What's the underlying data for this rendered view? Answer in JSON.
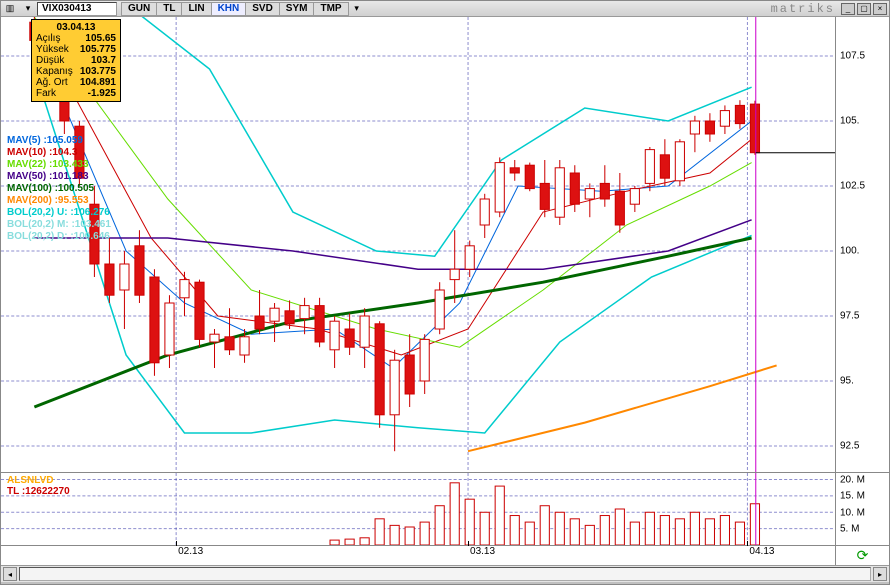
{
  "window": {
    "brand": "matriks"
  },
  "toolbar": {
    "symbol": "VIX030413",
    "tabs": [
      "GUN",
      "TL",
      "LIN",
      "KHN",
      "SVD",
      "SYM",
      "TMP"
    ],
    "active_tab": "KHN"
  },
  "ohlc_box": {
    "date": "03.04.13",
    "rows": [
      {
        "k": "Açılış",
        "v": "105.65"
      },
      {
        "k": "Yüksek",
        "v": "105.775"
      },
      {
        "k": "Düşük",
        "v": "103.7"
      },
      {
        "k": "Kapanış",
        "v": "103.775"
      },
      {
        "k": "Ağ. Ort",
        "v": "104.891"
      },
      {
        "k": "Fark",
        "v": "-1.925"
      }
    ]
  },
  "indicator_labels": [
    {
      "text": "MAV(5)    :105.059",
      "color": "#0066dd"
    },
    {
      "text": "MAV(10)   :104.3",
      "color": "#cc0000"
    },
    {
      "text": "MAV(22)   :103.433",
      "color": "#66dd00"
    },
    {
      "text": "MAV(50)   :101.183",
      "color": "#440088"
    },
    {
      "text": "MAV(100)  :100.505",
      "color": "#006600"
    },
    {
      "text": "MAV(200)  :95.553",
      "color": "#ff8800"
    },
    {
      "text": "BOL(20,2) U: :106.276",
      "color": "#00cccc"
    },
    {
      "text": "BOL(20,2) M: :103.461",
      "color": "#88dddd"
    },
    {
      "text": "BOL(20,2) D: :100.646",
      "color": "#88dddd"
    }
  ],
  "volume_labels": [
    {
      "text": "ALSNLVD",
      "color": "#ffaa00"
    },
    {
      "text": "TL        :12622270",
      "color": "#cc0000"
    }
  ],
  "price_axis": {
    "min": 91.5,
    "max": 109,
    "ticks": [
      92.5,
      95,
      97.5,
      100,
      102.5,
      105,
      107.5
    ]
  },
  "volume_axis": {
    "min": 0,
    "max": 22,
    "ticks": [
      5,
      10,
      15,
      20
    ],
    "suffix": ". M"
  },
  "time_axis": {
    "labels": [
      {
        "pos": 0.21,
        "text": "02.13"
      },
      {
        "pos": 0.56,
        "text": "03.13"
      },
      {
        "pos": 0.895,
        "text": "04.13"
      }
    ]
  },
  "cursor_x": 0.905,
  "candles": [
    {
      "x": 0.04,
      "o": 108.8,
      "h": 109.2,
      "l": 107.8,
      "c": 108.1
    },
    {
      "x": 0.058,
      "o": 108.0,
      "h": 108.2,
      "l": 107.0,
      "c": 107.1
    },
    {
      "x": 0.076,
      "o": 106.0,
      "h": 107.0,
      "l": 104.5,
      "c": 105.0
    },
    {
      "x": 0.094,
      "o": 104.8,
      "h": 105.0,
      "l": 102.5,
      "c": 102.8
    },
    {
      "x": 0.112,
      "o": 101.8,
      "h": 102.5,
      "l": 99.0,
      "c": 99.5
    },
    {
      "x": 0.13,
      "o": 99.5,
      "h": 100.5,
      "l": 98.0,
      "c": 98.3
    },
    {
      "x": 0.148,
      "o": 98.5,
      "h": 100.0,
      "l": 97.0,
      "c": 99.5
    },
    {
      "x": 0.166,
      "o": 100.2,
      "h": 100.8,
      "l": 98.0,
      "c": 98.3
    },
    {
      "x": 0.184,
      "o": 99.0,
      "h": 99.3,
      "l": 95.2,
      "c": 95.7
    },
    {
      "x": 0.202,
      "o": 96.0,
      "h": 98.3,
      "l": 95.5,
      "c": 98.0
    },
    {
      "x": 0.22,
      "o": 98.2,
      "h": 99.2,
      "l": 97.5,
      "c": 98.9
    },
    {
      "x": 0.238,
      "o": 98.8,
      "h": 98.9,
      "l": 96.3,
      "c": 96.6
    },
    {
      "x": 0.256,
      "o": 96.5,
      "h": 97.0,
      "l": 95.5,
      "c": 96.8
    },
    {
      "x": 0.274,
      "o": 96.7,
      "h": 97.8,
      "l": 96.0,
      "c": 96.2
    },
    {
      "x": 0.292,
      "o": 96.0,
      "h": 97.0,
      "l": 95.7,
      "c": 96.7
    },
    {
      "x": 0.31,
      "o": 97.5,
      "h": 98.5,
      "l": 96.8,
      "c": 97.0
    },
    {
      "x": 0.328,
      "o": 97.3,
      "h": 98.0,
      "l": 96.5,
      "c": 97.8
    },
    {
      "x": 0.346,
      "o": 97.7,
      "h": 98.1,
      "l": 97.0,
      "c": 97.2
    },
    {
      "x": 0.364,
      "o": 97.4,
      "h": 98.2,
      "l": 96.8,
      "c": 97.9
    },
    {
      "x": 0.382,
      "o": 97.9,
      "h": 98.2,
      "l": 96.3,
      "c": 96.5
    },
    {
      "x": 0.4,
      "o": 96.2,
      "h": 97.5,
      "l": 95.5,
      "c": 97.3
    },
    {
      "x": 0.418,
      "o": 97.0,
      "h": 97.6,
      "l": 96.0,
      "c": 96.3
    },
    {
      "x": 0.436,
      "o": 96.3,
      "h": 97.8,
      "l": 95.5,
      "c": 97.5
    },
    {
      "x": 0.454,
      "o": 97.2,
      "h": 97.3,
      "l": 93.2,
      "c": 93.7
    },
    {
      "x": 0.472,
      "o": 93.7,
      "h": 96.2,
      "l": 92.3,
      "c": 95.8
    },
    {
      "x": 0.49,
      "o": 96.0,
      "h": 96.8,
      "l": 94.0,
      "c": 94.5
    },
    {
      "x": 0.508,
      "o": 95.0,
      "h": 96.8,
      "l": 94.5,
      "c": 96.6
    },
    {
      "x": 0.526,
      "o": 97.0,
      "h": 98.8,
      "l": 96.8,
      "c": 98.5
    },
    {
      "x": 0.544,
      "o": 98.9,
      "h": 100.8,
      "l": 98.0,
      "c": 99.3
    },
    {
      "x": 0.562,
      "o": 99.3,
      "h": 100.4,
      "l": 99.0,
      "c": 100.2
    },
    {
      "x": 0.58,
      "o": 101.0,
      "h": 102.2,
      "l": 100.5,
      "c": 102.0
    },
    {
      "x": 0.598,
      "o": 101.5,
      "h": 103.6,
      "l": 101.3,
      "c": 103.4
    },
    {
      "x": 0.616,
      "o": 103.2,
      "h": 103.5,
      "l": 102.7,
      "c": 103.0
    },
    {
      "x": 0.634,
      "o": 103.3,
      "h": 103.4,
      "l": 102.3,
      "c": 102.4
    },
    {
      "x": 0.652,
      "o": 102.6,
      "h": 103.5,
      "l": 101.3,
      "c": 101.6
    },
    {
      "x": 0.67,
      "o": 101.3,
      "h": 103.5,
      "l": 101.0,
      "c": 103.2
    },
    {
      "x": 0.688,
      "o": 103.0,
      "h": 103.3,
      "l": 101.5,
      "c": 101.8
    },
    {
      "x": 0.706,
      "o": 102.0,
      "h": 102.6,
      "l": 101.3,
      "c": 102.4
    },
    {
      "x": 0.724,
      "o": 102.6,
      "h": 103.3,
      "l": 101.7,
      "c": 102.0
    },
    {
      "x": 0.742,
      "o": 102.3,
      "h": 103.0,
      "l": 100.7,
      "c": 101.0
    },
    {
      "x": 0.76,
      "o": 101.8,
      "h": 102.5,
      "l": 101.5,
      "c": 102.4
    },
    {
      "x": 0.778,
      "o": 102.6,
      "h": 104.0,
      "l": 102.3,
      "c": 103.9
    },
    {
      "x": 0.796,
      "o": 103.7,
      "h": 104.3,
      "l": 102.5,
      "c": 102.8
    },
    {
      "x": 0.814,
      "o": 102.7,
      "h": 104.3,
      "l": 102.5,
      "c": 104.2
    },
    {
      "x": 0.832,
      "o": 104.5,
      "h": 105.2,
      "l": 103.8,
      "c": 105.0
    },
    {
      "x": 0.85,
      "o": 105.0,
      "h": 105.3,
      "l": 104.2,
      "c": 104.5
    },
    {
      "x": 0.868,
      "o": 104.8,
      "h": 105.6,
      "l": 104.5,
      "c": 105.4
    },
    {
      "x": 0.886,
      "o": 105.6,
      "h": 105.8,
      "l": 104.7,
      "c": 104.9
    },
    {
      "x": 0.904,
      "o": 105.65,
      "h": 105.78,
      "l": 103.7,
      "c": 103.78
    }
  ],
  "mav_lines": [
    {
      "color": "#0066dd",
      "w": 1,
      "pts": [
        [
          0.04,
          108.3
        ],
        [
          0.15,
          100
        ],
        [
          0.22,
          98
        ],
        [
          0.3,
          96.8
        ],
        [
          0.4,
          97
        ],
        [
          0.47,
          95.5
        ],
        [
          0.55,
          98
        ],
        [
          0.62,
          102.5
        ],
        [
          0.72,
          102.3
        ],
        [
          0.8,
          102.5
        ],
        [
          0.9,
          105
        ]
      ]
    },
    {
      "color": "#cc0000",
      "w": 1,
      "pts": [
        [
          0.04,
          108.8
        ],
        [
          0.18,
          100.5
        ],
        [
          0.26,
          97.5
        ],
        [
          0.38,
          97
        ],
        [
          0.48,
          96
        ],
        [
          0.56,
          97
        ],
        [
          0.65,
          101.5
        ],
        [
          0.75,
          102.3
        ],
        [
          0.85,
          103
        ],
        [
          0.9,
          104.3
        ]
      ]
    },
    {
      "color": "#66dd00",
      "w": 1,
      "pts": [
        [
          0.04,
          109
        ],
        [
          0.2,
          102
        ],
        [
          0.3,
          98.5
        ],
        [
          0.45,
          97
        ],
        [
          0.55,
          96.3
        ],
        [
          0.65,
          98.5
        ],
        [
          0.75,
          101
        ],
        [
          0.85,
          102.5
        ],
        [
          0.9,
          103.4
        ]
      ]
    },
    {
      "color": "#440088",
      "w": 1.5,
      "pts": [
        [
          0.04,
          100.5
        ],
        [
          0.2,
          100.5
        ],
        [
          0.35,
          100
        ],
        [
          0.5,
          99.3
        ],
        [
          0.65,
          99.3
        ],
        [
          0.8,
          100
        ],
        [
          0.9,
          101.2
        ]
      ]
    },
    {
      "color": "#006600",
      "w": 3,
      "pts": [
        [
          0.04,
          94
        ],
        [
          0.2,
          96
        ],
        [
          0.35,
          97.3
        ],
        [
          0.5,
          98
        ],
        [
          0.65,
          98.8
        ],
        [
          0.8,
          99.8
        ],
        [
          0.9,
          100.5
        ]
      ]
    },
    {
      "color": "#ff8800",
      "w": 2,
      "pts": [
        [
          0.56,
          92.3
        ],
        [
          0.7,
          93.4
        ],
        [
          0.85,
          94.8
        ],
        [
          0.93,
          95.6
        ]
      ]
    }
  ],
  "bollinger": {
    "upper": {
      "color": "#00cccc",
      "w": 1.5,
      "pts": [
        [
          0.04,
          109.5
        ],
        [
          0.15,
          109.5
        ],
        [
          0.25,
          107
        ],
        [
          0.35,
          101.5
        ],
        [
          0.45,
          100
        ],
        [
          0.52,
          99.8
        ],
        [
          0.6,
          103.5
        ],
        [
          0.7,
          105.5
        ],
        [
          0.8,
          105
        ],
        [
          0.9,
          106.3
        ]
      ]
    },
    "lower": {
      "color": "#00cccc",
      "w": 1.5,
      "pts": [
        [
          0.04,
          107
        ],
        [
          0.15,
          96
        ],
        [
          0.22,
          93
        ],
        [
          0.3,
          93
        ],
        [
          0.4,
          93.5
        ],
        [
          0.5,
          93.2
        ],
        [
          0.58,
          93
        ],
        [
          0.67,
          96.5
        ],
        [
          0.78,
          99
        ],
        [
          0.9,
          100.6
        ]
      ]
    }
  },
  "volumes": [
    {
      "x": 0.4,
      "v": 1.5
    },
    {
      "x": 0.418,
      "v": 1.8
    },
    {
      "x": 0.436,
      "v": 2.2
    },
    {
      "x": 0.454,
      "v": 8
    },
    {
      "x": 0.472,
      "v": 6
    },
    {
      "x": 0.49,
      "v": 5.5
    },
    {
      "x": 0.508,
      "v": 7
    },
    {
      "x": 0.526,
      "v": 12
    },
    {
      "x": 0.544,
      "v": 19
    },
    {
      "x": 0.562,
      "v": 14
    },
    {
      "x": 0.58,
      "v": 10
    },
    {
      "x": 0.598,
      "v": 18
    },
    {
      "x": 0.616,
      "v": 9
    },
    {
      "x": 0.634,
      "v": 7
    },
    {
      "x": 0.652,
      "v": 12
    },
    {
      "x": 0.67,
      "v": 10
    },
    {
      "x": 0.688,
      "v": 8
    },
    {
      "x": 0.706,
      "v": 6
    },
    {
      "x": 0.724,
      "v": 9
    },
    {
      "x": 0.742,
      "v": 11
    },
    {
      "x": 0.76,
      "v": 7
    },
    {
      "x": 0.778,
      "v": 10
    },
    {
      "x": 0.796,
      "v": 9
    },
    {
      "x": 0.814,
      "v": 8
    },
    {
      "x": 0.832,
      "v": 10
    },
    {
      "x": 0.85,
      "v": 8
    },
    {
      "x": 0.868,
      "v": 9
    },
    {
      "x": 0.886,
      "v": 7
    },
    {
      "x": 0.904,
      "v": 12.6
    }
  ],
  "colors": {
    "grid": "#2020a0",
    "candle_stroke": "#cc0000",
    "candle_fill_dn": "#dd1111",
    "bg": "#ffffff"
  }
}
